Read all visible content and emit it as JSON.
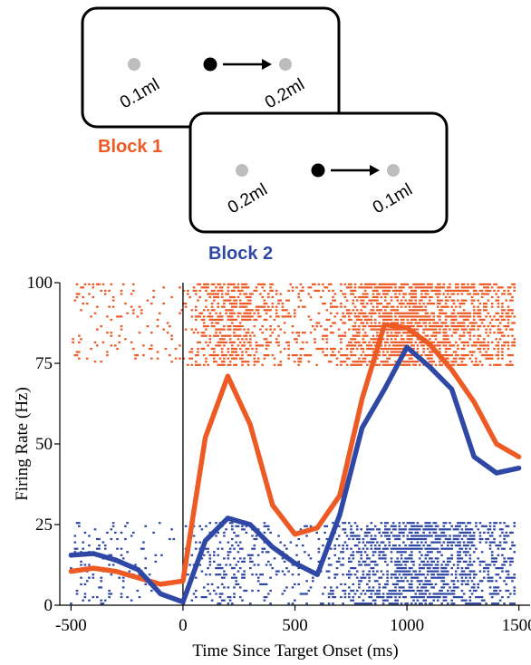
{
  "diagram": {
    "block1": {
      "title": "Block 1",
      "left_reward": "0.1ml",
      "right_reward": "0.2ml",
      "color": "#ee5a24"
    },
    "block2": {
      "title": "Block 2",
      "left_reward": "0.2ml",
      "right_reward": "0.1ml",
      "color": "#2f48a6"
    },
    "target_color": "#bdbdbd",
    "fixation_color": "#000000"
  },
  "chart_data": {
    "type": "line",
    "title": "",
    "xlabel": "Time Since Target Onset (ms)",
    "ylabel": "Firing Rate (Hz)",
    "xlim": [
      -550,
      1550
    ],
    "ylim": [
      0,
      100
    ],
    "x_ticks": [
      -500,
      0,
      500,
      1000,
      1500
    ],
    "y_ticks": [
      0,
      25,
      50,
      75,
      100
    ],
    "event_marker_x": 0,
    "x": [
      -500,
      -400,
      -300,
      -200,
      -100,
      0,
      100,
      200,
      300,
      400,
      500,
      600,
      700,
      800,
      900,
      1000,
      1100,
      1200,
      1300,
      1400,
      1500
    ],
    "series": [
      {
        "values": [
          10.5,
          11.5,
          10.5,
          8.5,
          6.5,
          7.5,
          52,
          71,
          56,
          31,
          22,
          24,
          34,
          64,
          87,
          86,
          81,
          73,
          63,
          50,
          46
        ],
        "color": "#ee5a24"
      },
      {
        "values": [
          15.5,
          16,
          14,
          11,
          3.5,
          1,
          20,
          27,
          25,
          18,
          13,
          9.5,
          28,
          55,
          67,
          80,
          74,
          67,
          46,
          41,
          42.5
        ],
        "color": "#2f48a6"
      }
    ],
    "raster": {
      "block1_band": [
        74,
        100
      ],
      "block2_band": [
        0,
        26
      ]
    }
  }
}
